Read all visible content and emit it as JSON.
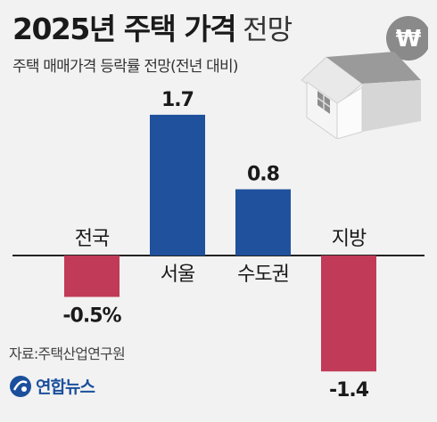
{
  "header": {
    "title": "2025년 주택 가격",
    "title_suffix": "전망",
    "subtitle": "주택 매매가격 등락률 전망(전년 대비)"
  },
  "footer": {
    "source": "자료:주택산업연구원",
    "logo_text": "연합뉴스"
  },
  "icons": {
    "bubble_symbol": "₩"
  },
  "colors": {
    "positive": "#1f519c",
    "negative": "#c13a57",
    "baseline": "#222222"
  },
  "chart_data": {
    "type": "bar",
    "categories": [
      "전국",
      "서울",
      "수도권",
      "지방"
    ],
    "values": [
      -0.5,
      1.7,
      0.8,
      -1.4
    ],
    "value_labels": [
      "-0.5%",
      "1.7",
      "0.8",
      "-1.4"
    ],
    "ylim": [
      -1.4,
      1.7
    ],
    "grid": false
  }
}
